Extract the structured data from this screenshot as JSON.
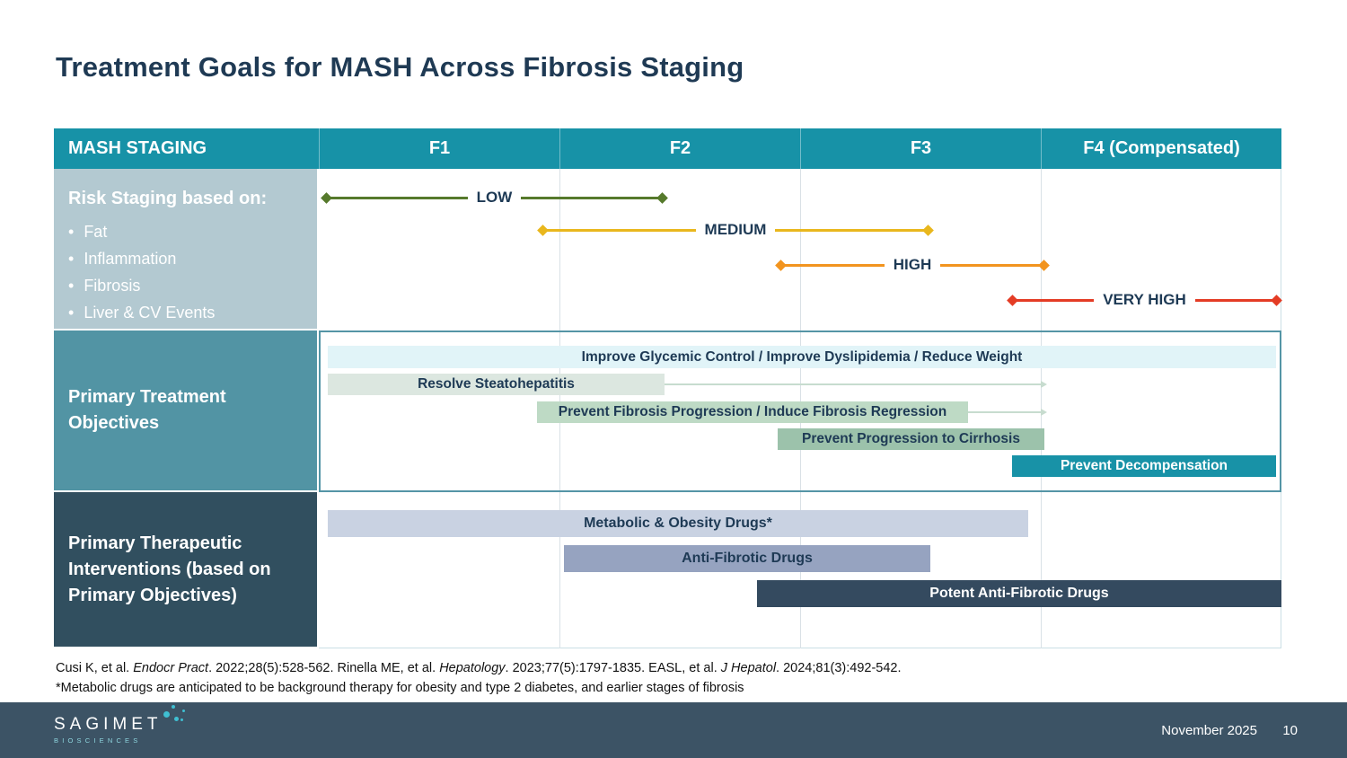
{
  "title": "Treatment Goals for MASH Across Fibrosis Staging",
  "table": {
    "header": {
      "staging": "MASH STAGING",
      "columns": [
        "F1",
        "F2",
        "F3",
        "F4 (Compensated)"
      ]
    },
    "risk": {
      "heading": "Risk Staging based on:",
      "bullets": [
        "Fat",
        "Inflammation",
        "Fibrosis",
        "Liver & CV Events"
      ],
      "arrows": [
        {
          "label": "LOW",
          "color": "#567A2C"
        },
        {
          "label": "MEDIUM",
          "color": "#E9B71D"
        },
        {
          "label": "HIGH",
          "color": "#F2941F"
        },
        {
          "label": "VERY HIGH",
          "color": "#E43C25"
        }
      ]
    },
    "objectives": {
      "label": "Primary Treatment Objectives",
      "bars": [
        {
          "label": "Improve Glycemic Control / Improve Dyslipidemia / Reduce Weight",
          "color": "#E1F4F8",
          "text_color": "#1E3A55"
        },
        {
          "label": "Resolve Steatohepatitis",
          "color": "#DCE7E0",
          "text_color": "#1E3A55"
        },
        {
          "label": "Prevent Fibrosis Progression / Induce Fibrosis Regression",
          "color": "#BEDAC5",
          "text_color": "#1E3A55"
        },
        {
          "label": "Prevent Progression to Cirrhosis",
          "color": "#9CC2AB",
          "text_color": "#1E3A55"
        },
        {
          "label": "Prevent Decompensation",
          "color": "#1892A7",
          "text_color": "#FFFFFF"
        }
      ]
    },
    "interventions": {
      "label": "Primary Therapeutic Interventions (based on Primary Objectives)",
      "bars": [
        {
          "label": "Metabolic & Obesity Drugs*",
          "color": "#C9D2E2",
          "text_color": "#1E3A55"
        },
        {
          "label": "Anti-Fibrotic Drugs",
          "color": "#96A3C0",
          "text_color": "#1E3A55"
        },
        {
          "label": "Potent Anti-Fibrotic Drugs",
          "color": "#344A5F",
          "text_color": "#FFFFFF"
        }
      ]
    }
  },
  "notes": {
    "citation_segments": [
      {
        "text": "Cusi K, et al. ",
        "italic": false
      },
      {
        "text": "Endocr Pract",
        "italic": true
      },
      {
        "text": ". 2022;28(5):528-562. Rinella ME, et al. ",
        "italic": false
      },
      {
        "text": "Hepatology",
        "italic": true
      },
      {
        "text": ". 2023;77(5):1797-1835. EASL, et al. ",
        "italic": false
      },
      {
        "text": "J Hepatol",
        "italic": true
      },
      {
        "text": ". 2024;81(3):492-542.",
        "italic": false
      }
    ],
    "footnote": "*Metabolic drugs are anticipated to be background therapy for obesity and type 2 diabetes, and earlier stages of fibrosis"
  },
  "footer": {
    "logo_text": "SAGIMET",
    "logo_subtext": "BIOSCIENCES",
    "date": "November 2025",
    "page": "10"
  },
  "colors": {
    "header_teal": "#1792A7",
    "risk_cell": "#B3C9D1",
    "objectives_cell": "#5294A4",
    "interventions_cell": "#314F5F",
    "footer_bar": "#3C5365",
    "title_text": "#1F3A54",
    "objectives_border": "#5495A6"
  }
}
